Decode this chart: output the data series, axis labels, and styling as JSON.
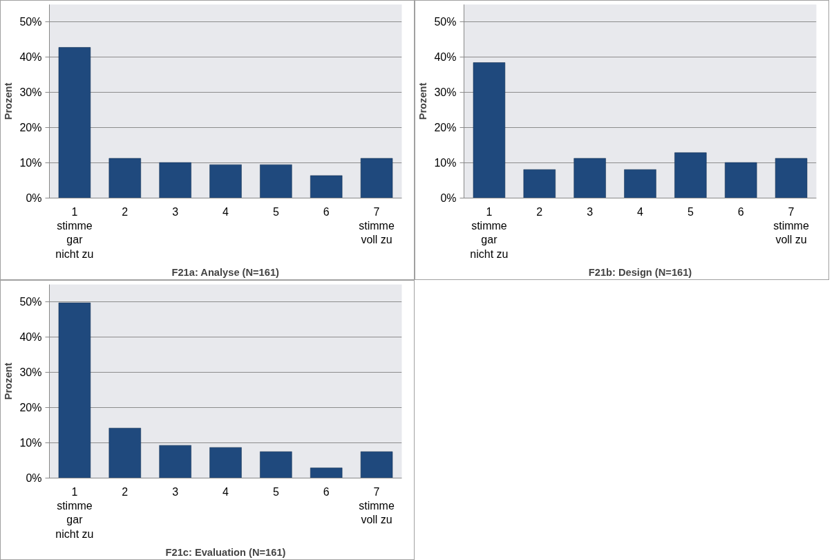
{
  "chart_data": [
    {
      "type": "bar",
      "title": "F21a: Analyse (N=161)",
      "ylabel": "Prozent",
      "categories": [
        "1\nstimme\ngar\nnicht zu",
        "2",
        "3",
        "4",
        "5",
        "6",
        "7\nstimme\nvoll zu"
      ],
      "values": [
        42.8,
        11.3,
        10.1,
        9.5,
        9.5,
        6.4,
        11.3
      ],
      "color": "#1f497d",
      "ylim": [
        0,
        50
      ],
      "yticks": [
        {
          "value": 0,
          "label": "0%"
        },
        {
          "value": 10,
          "label": "10%"
        },
        {
          "value": 20,
          "label": "20%"
        },
        {
          "value": 30,
          "label": "30%"
        },
        {
          "value": 40,
          "label": "40%"
        },
        {
          "value": 50,
          "label": "50%"
        }
      ],
      "grid": "y"
    },
    {
      "type": "bar",
      "title": "F21b: Design (N=161)",
      "ylabel": "Prozent",
      "categories": [
        "1\nstimme\ngar\nnicht zu",
        "2",
        "3",
        "4",
        "5",
        "6",
        "7\nstimme\nvoll zu"
      ],
      "values": [
        38.5,
        8.1,
        11.3,
        8.1,
        12.9,
        10.1,
        11.3
      ],
      "color": "#1f497d",
      "ylim": [
        0,
        50
      ],
      "yticks": [
        {
          "value": 0,
          "label": "0%"
        },
        {
          "value": 10,
          "label": "10%"
        },
        {
          "value": 20,
          "label": "20%"
        },
        {
          "value": 30,
          "label": "30%"
        },
        {
          "value": 40,
          "label": "40%"
        },
        {
          "value": 50,
          "label": "50%"
        }
      ],
      "grid": "y"
    },
    {
      "type": "bar",
      "title": "F21c: Evaluation (N=161)",
      "ylabel": "Prozent",
      "categories": [
        "1\nstimme\ngar\nnicht zu",
        "2",
        "3",
        "4",
        "5",
        "6",
        "7\nstimme\nvoll zu"
      ],
      "values": [
        49.8,
        14.2,
        9.3,
        8.7,
        7.5,
        2.9,
        7.5
      ],
      "color": "#1f497d",
      "ylim": [
        0,
        50
      ],
      "yticks": [
        {
          "value": 0,
          "label": "0%"
        },
        {
          "value": 10,
          "label": "10%"
        },
        {
          "value": 20,
          "label": "20%"
        },
        {
          "value": 30,
          "label": "30%"
        },
        {
          "value": 40,
          "label": "40%"
        },
        {
          "value": 50,
          "label": "50%"
        }
      ],
      "grid": "y"
    }
  ]
}
